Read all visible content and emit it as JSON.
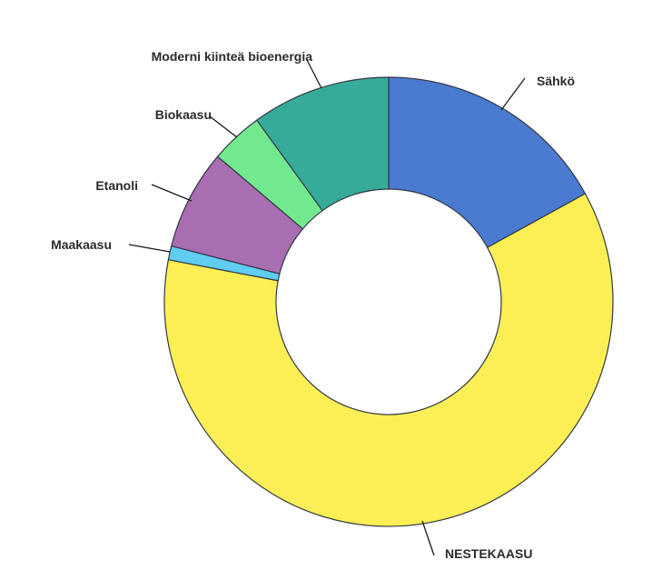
{
  "page": {
    "background_color": "#ffffff"
  },
  "chart_data": {
    "type": "pie",
    "subtype": "donut",
    "start_angle_deg": 0,
    "direction": "clockwise",
    "donut_hole_ratio": 0.5,
    "legend_position": "none",
    "labels_style": "callout-lines",
    "stroke_color": "#333844",
    "label_text_color": "#2b2b2b",
    "leader_line_color": "#1a1a1a",
    "segments": [
      {
        "id": "sahko",
        "label": "Sähkö",
        "value_percent": 17.0,
        "color": "#4A7BD0"
      },
      {
        "id": "nestekaasu",
        "label": "NESTEKAASU",
        "value_percent": 61.0,
        "color": "#FBEF55"
      },
      {
        "id": "maakaasu",
        "label": "Maakaasu",
        "value_percent": 1.0,
        "color": "#60CDF3"
      },
      {
        "id": "etanoli",
        "label": "Etanoli",
        "value_percent": 7.2,
        "color": "#A96DB1"
      },
      {
        "id": "biokaasu",
        "label": "Biokaasu",
        "value_percent": 3.8,
        "color": "#73E98F"
      },
      {
        "id": "moderni-kiintea-bioenergia",
        "label": "Moderni kiinteä bioenergia",
        "value_percent": 10.0,
        "color": "#37AB9A"
      }
    ]
  }
}
